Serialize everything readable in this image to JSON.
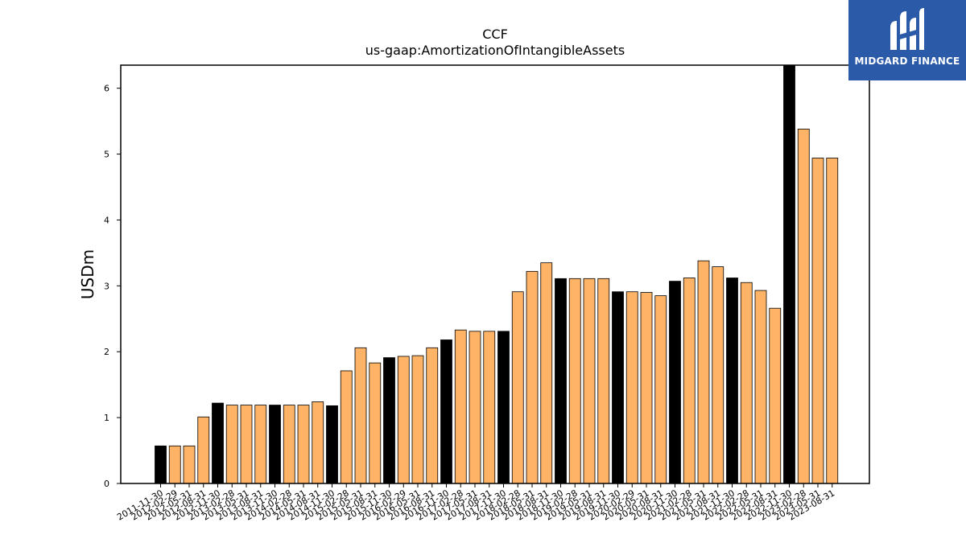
{
  "brand": {
    "name": "MIDGARD FINANCE",
    "bg_color": "#2b5aa8"
  },
  "chart_data": {
    "type": "bar",
    "title": "CCF",
    "subtitle": "us-gaap:AmortizationOfIntangibleAssets",
    "xlabel": "",
    "ylabel": "USDm",
    "ylim": [
      0,
      6.35
    ],
    "yticks": [
      0,
      1,
      2,
      3,
      4,
      5,
      6
    ],
    "grid": false,
    "colors": {
      "annual": "#000000",
      "quarterly": "#ffb366",
      "edge": "#000000"
    },
    "categories": [
      "2011-11-30",
      "2012-02-29",
      "2012-05-31",
      "2012-08-31",
      "2012-11-30",
      "2013-02-28",
      "2013-05-31",
      "2013-08-31",
      "2013-11-30",
      "2014-02-28",
      "2014-05-31",
      "2014-08-31",
      "2014-11-30",
      "2015-02-28",
      "2015-05-31",
      "2015-08-31",
      "2015-11-30",
      "2016-02-29",
      "2016-05-31",
      "2016-08-31",
      "2016-11-30",
      "2017-02-28",
      "2017-05-31",
      "2017-08-31",
      "2017-11-30",
      "2018-02-28",
      "2018-05-31",
      "2018-08-31",
      "2018-11-30",
      "2019-02-28",
      "2019-05-31",
      "2019-08-31",
      "2019-11-30",
      "2020-02-29",
      "2020-05-31",
      "2020-08-31",
      "2020-11-30",
      "2021-02-28",
      "2021-05-31",
      "2021-08-31",
      "2021-11-30",
      "2022-02-28",
      "2022-05-31",
      "2022-08-31",
      "2022-11-30",
      "2023-02-28",
      "2023-05-31",
      "2023-08-31"
    ],
    "values": [
      0.57,
      0.57,
      0.57,
      1.01,
      1.22,
      1.19,
      1.19,
      1.19,
      1.19,
      1.19,
      1.19,
      1.24,
      1.18,
      1.71,
      2.06,
      1.83,
      1.91,
      1.93,
      1.94,
      2.06,
      2.18,
      2.33,
      2.31,
      2.31,
      2.31,
      2.91,
      3.22,
      3.35,
      3.11,
      3.11,
      3.11,
      3.11,
      2.91,
      2.91,
      2.9,
      2.85,
      3.07,
      3.12,
      3.38,
      3.29,
      3.12,
      3.05,
      2.93,
      2.66,
      6.35,
      5.38,
      4.94,
      4.94
    ],
    "annual_flags": [
      true,
      false,
      false,
      false,
      true,
      false,
      false,
      false,
      true,
      false,
      false,
      false,
      true,
      false,
      false,
      false,
      true,
      false,
      false,
      false,
      true,
      false,
      false,
      false,
      true,
      false,
      false,
      false,
      true,
      false,
      false,
      false,
      true,
      false,
      false,
      false,
      true,
      false,
      false,
      false,
      true,
      false,
      false,
      false,
      true,
      false,
      false,
      false
    ]
  }
}
